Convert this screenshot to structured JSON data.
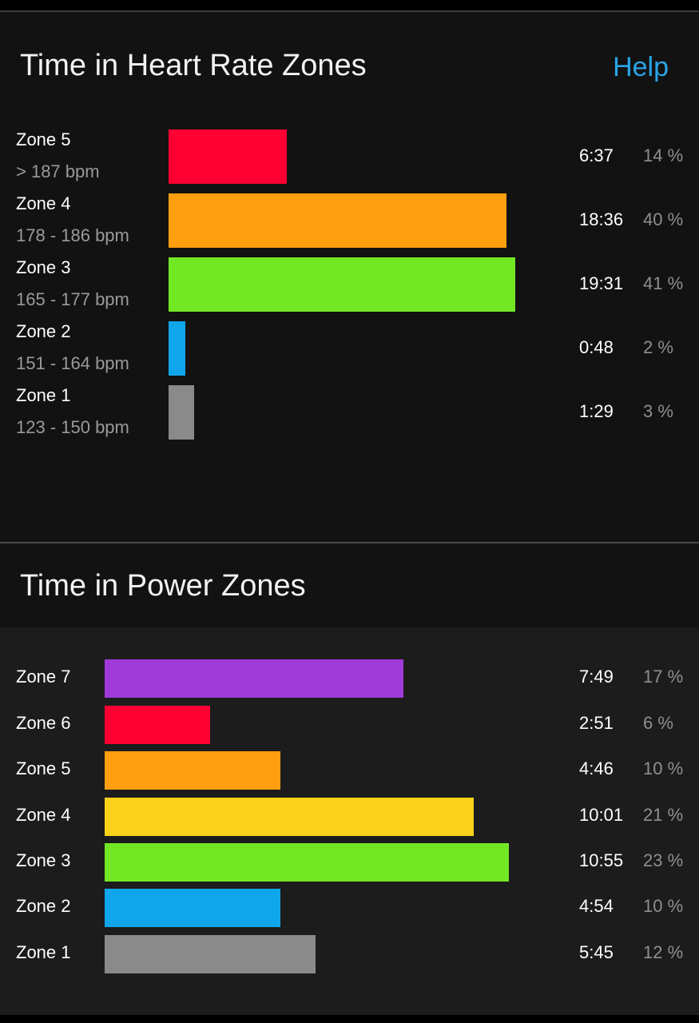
{
  "heart_rate": {
    "title": "Time in Heart Rate Zones",
    "help_label": "Help",
    "zones": [
      {
        "name": "Zone 5",
        "range": "> 187 bpm",
        "time": "6:37",
        "percent": "14 %",
        "value": 14,
        "color": "#ff0033"
      },
      {
        "name": "Zone 4",
        "range": "178 - 186 bpm",
        "time": "18:36",
        "percent": "40 %",
        "value": 40,
        "color": "#ff9f0f"
      },
      {
        "name": "Zone 3",
        "range": "165 - 177 bpm",
        "time": "19:31",
        "percent": "41 %",
        "value": 41,
        "color": "#72e825"
      },
      {
        "name": "Zone 2",
        "range": "151 - 164 bpm",
        "time": "0:48",
        "percent": "2 %",
        "value": 2,
        "color": "#10a6ec"
      },
      {
        "name": "Zone 1",
        "range": "123 - 150 bpm",
        "time": "1:29",
        "percent": "3 %",
        "value": 3,
        "color": "#8a8a8a"
      }
    ]
  },
  "power": {
    "title": "Time in Power Zones",
    "zones": [
      {
        "name": "Zone 7",
        "time": "7:49",
        "percent": "17 %",
        "value": 17,
        "color": "#a03ad8"
      },
      {
        "name": "Zone 6",
        "time": "2:51",
        "percent": "6 %",
        "value": 6,
        "color": "#ff0033"
      },
      {
        "name": "Zone 5",
        "time": "4:46",
        "percent": "10 %",
        "value": 10,
        "color": "#ff9f0f"
      },
      {
        "name": "Zone 4",
        "time": "10:01",
        "percent": "21 %",
        "value": 21,
        "color": "#fad21a"
      },
      {
        "name": "Zone 3",
        "time": "10:55",
        "percent": "23 %",
        "value": 23,
        "color": "#72e825"
      },
      {
        "name": "Zone 2",
        "time": "4:54",
        "percent": "10 %",
        "value": 10,
        "color": "#10a6ec"
      },
      {
        "name": "Zone 1",
        "time": "5:45",
        "percent": "12 %",
        "value": 12,
        "color": "#8a8a8a"
      }
    ]
  }
}
